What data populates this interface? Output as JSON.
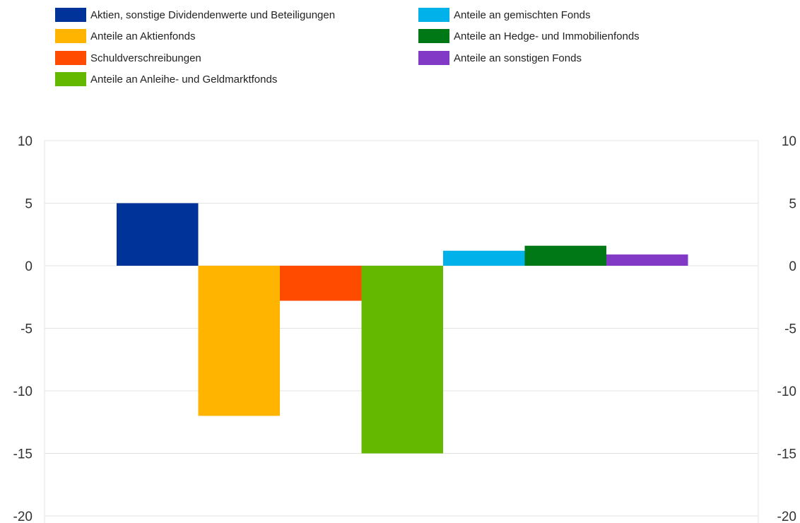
{
  "chart_data": {
    "type": "bar",
    "categories": [
      "Aktien, sonstige Dividendenwerte und Beteiligungen",
      "Anteile an Aktienfonds",
      "Schuldverschreibungen",
      "Anteile an Anleihe- und Geldmarktfonds",
      "Anteile an gemischten Fonds",
      "Anteile an Hedge- und Immobilienfonds",
      "Anteile an sonstigen Fonds"
    ],
    "values": [
      5.0,
      -12.0,
      -2.8,
      -15.0,
      1.2,
      1.6,
      0.9
    ],
    "colors": [
      "#003399",
      "#FFB400",
      "#FF4B00",
      "#65B800",
      "#00B1EA",
      "#007816",
      "#8139C6"
    ],
    "ylim": [
      -20,
      10
    ],
    "yticks": [
      10,
      5,
      0,
      -5,
      -10,
      -15,
      -20
    ],
    "ytick_labels": [
      "10",
      "5",
      "0",
      "-5",
      "-10",
      "-15",
      "-20"
    ],
    "grid": true,
    "secondary_axis": true,
    "legend_position": "top",
    "title": "",
    "xlabel": "",
    "ylabel": ""
  }
}
